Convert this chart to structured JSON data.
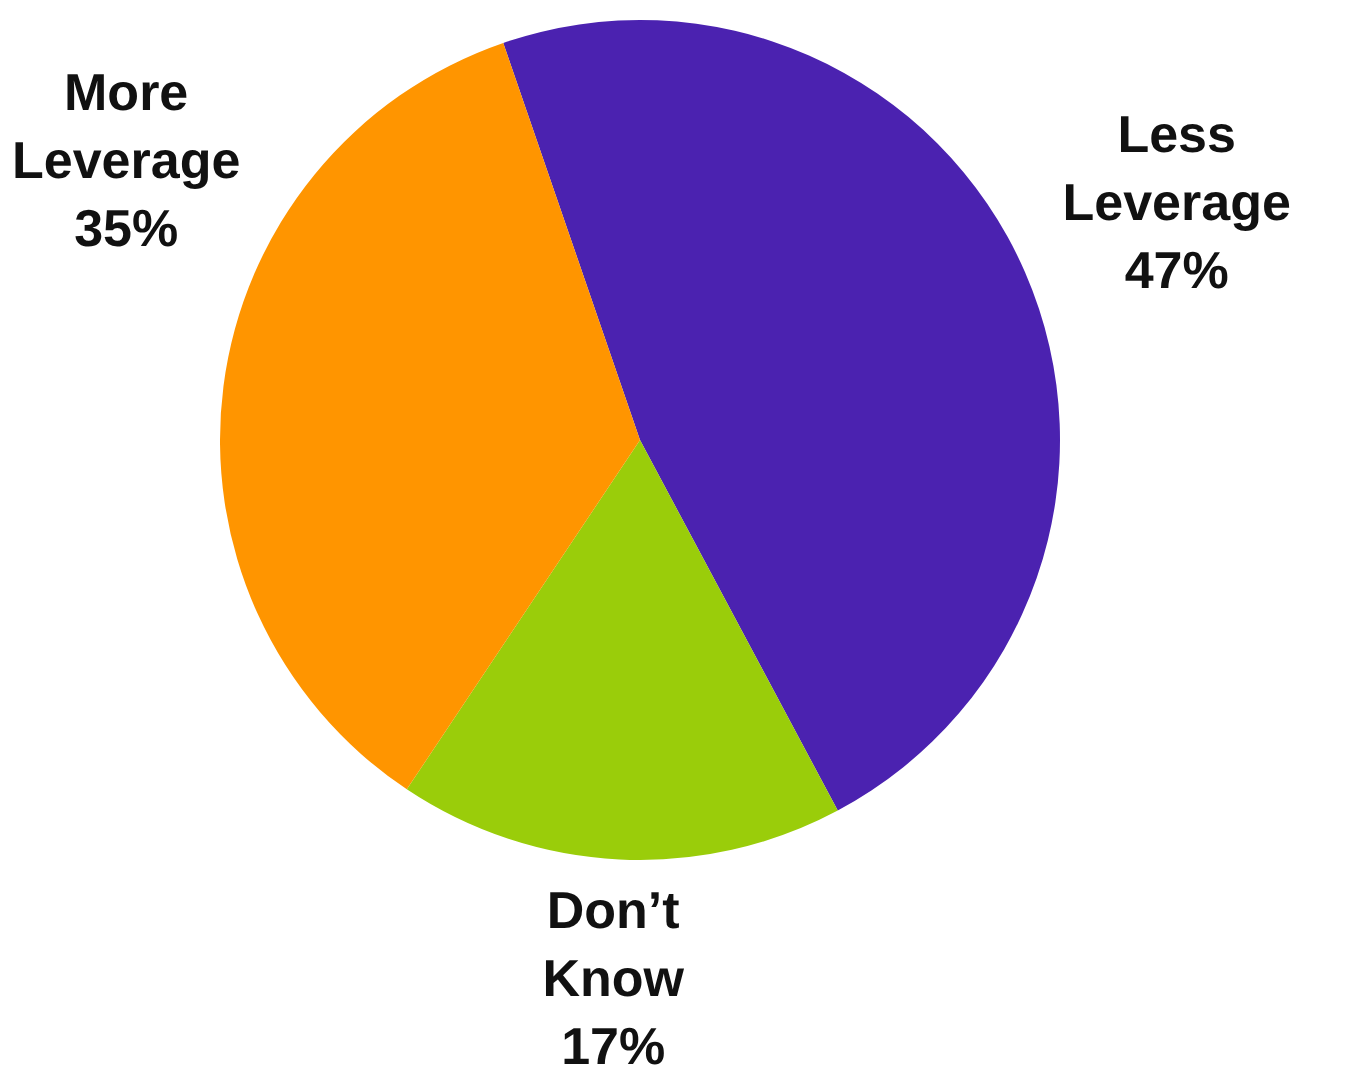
{
  "chart_data": {
    "type": "pie",
    "categories": [
      "Less Leverage",
      "Don’t Know",
      "More Leverage"
    ],
    "values": [
      47,
      17,
      35
    ],
    "value_labels": [
      "47%",
      "17%",
      "35%"
    ],
    "colors": [
      "#4b22b0",
      "#9acd0a",
      "#ff9500"
    ]
  }
}
